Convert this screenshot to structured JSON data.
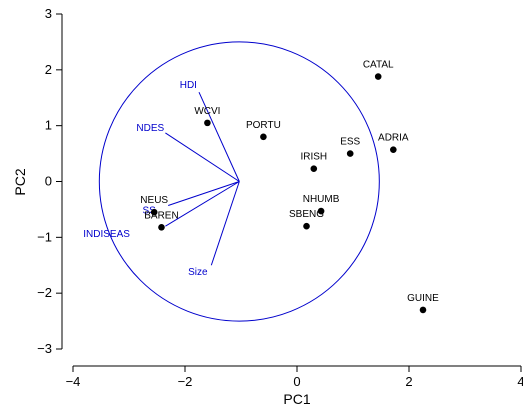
{
  "chart_data": {
    "type": "scatter",
    "subtype": "biplot",
    "xlabel": "PC1",
    "ylabel": "PC2",
    "xlim": [
      -4,
      4
    ],
    "ylim": [
      -3,
      3
    ],
    "xticks": [
      -4,
      -2,
      0,
      2,
      4
    ],
    "xtick_labels": [
      "−4",
      "−2",
      "0",
      "2",
      "4"
    ],
    "yticks": [
      -3,
      -2,
      -1,
      0,
      1,
      2,
      3
    ],
    "ytick_labels": [
      "−3",
      "−2",
      "−1",
      "0",
      "1",
      "2",
      "3"
    ],
    "grid": false,
    "points": [
      {
        "label": "CATAL",
        "x": 1.45,
        "y": 1.88
      },
      {
        "label": "ADRIA",
        "x": 1.72,
        "y": 0.57
      },
      {
        "label": "ESS",
        "x": 0.95,
        "y": 0.5
      },
      {
        "label": "PORTU",
        "x": -0.6,
        "y": 0.8
      },
      {
        "label": "WCVI",
        "x": -1.6,
        "y": 1.05
      },
      {
        "label": "IRISH",
        "x": 0.3,
        "y": 0.23
      },
      {
        "label": "NHUMB",
        "x": 0.43,
        "y": -0.53
      },
      {
        "label": "SBENG",
        "x": 0.17,
        "y": -0.8
      },
      {
        "label": "NEUS",
        "x": -2.55,
        "y": -0.55
      },
      {
        "label": "BAREN",
        "x": -2.42,
        "y": -0.82
      },
      {
        "label": "GUINE",
        "x": 2.25,
        "y": -2.3
      }
    ],
    "circle": {
      "center": [
        -1.03,
        0
      ],
      "radius": 2.5,
      "color": "#0000cc"
    },
    "loadings": {
      "origin": [
        -1.03,
        0
      ],
      "color": "#0000cc",
      "vectors": [
        {
          "label": "HDI",
          "x": -1.75,
          "y": 1.6,
          "lx": -1.94,
          "ly": 1.75
        },
        {
          "label": "NDES",
          "x": -2.35,
          "y": 0.87,
          "lx": -2.62,
          "ly": 0.98
        },
        {
          "label": "SS",
          "x": -2.3,
          "y": -0.43,
          "lx": -2.64,
          "ly": -0.5
        },
        {
          "label": "INDISEAS",
          "x": -2.35,
          "y": -0.8,
          "lx": -3.4,
          "ly": -0.92
        },
        {
          "label": "Size",
          "x": -1.53,
          "y": -1.5,
          "lx": -1.77,
          "ly": -1.6
        }
      ]
    }
  }
}
